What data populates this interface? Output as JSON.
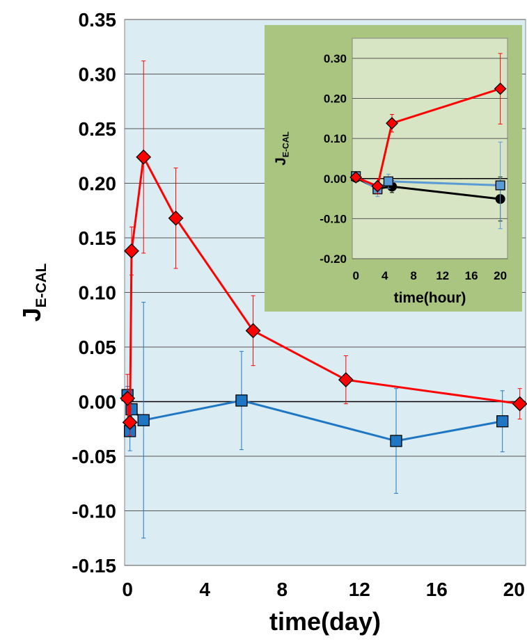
{
  "chart_data": [
    {
      "type": "line",
      "xlabel": "time(day)",
      "ylabel": "J",
      "ylabel_sub": "E-CAL",
      "xlim": [
        -0.15,
        20.6
      ],
      "ylim": [
        -0.15,
        0.35
      ],
      "x_ticks": [
        "0",
        "4",
        "8",
        "12",
        "16",
        "20"
      ],
      "y_ticks": [
        "-0.15",
        "-0.10",
        "-0.05",
        "0.00",
        "0.05",
        "0.10",
        "0.15",
        "0.20",
        "0.25",
        "0.30",
        "0.35"
      ],
      "grid": true,
      "legend": "none",
      "colors": {
        "plot_bg": "#dbecf3",
        "red_series": "#ff0000",
        "blue_series": "#1f77c4",
        "blue_marker": "#1f6fb8"
      },
      "series": [
        {
          "marker": "diamond",
          "color": "#ff0000",
          "x": [
            0.0,
            0.125,
            0.21,
            0.83,
            2.5,
            6.5,
            11.3,
            20.3
          ],
          "y": [
            0.003,
            -0.019,
            0.138,
            0.224,
            0.168,
            0.065,
            0.02,
            -0.002
          ],
          "err": [
            0.022,
            0.012,
            0.022,
            0.088,
            0.046,
            0.032,
            0.022,
            0.014
          ]
        },
        {
          "marker": "square",
          "color": "#1f77c4",
          "x": [
            0.0,
            0.125,
            0.21,
            0.83,
            5.9,
            13.9,
            19.4
          ],
          "y": [
            0.006,
            -0.027,
            -0.007,
            -0.017,
            0.001,
            -0.036,
            -0.018
          ],
          "err": [
            0.008,
            0.018,
            0.01,
            0.108,
            0.045,
            0.048,
            0.028
          ]
        }
      ]
    },
    {
      "type": "line",
      "xlabel": "time(hour)",
      "ylabel": "J",
      "ylabel_sub": "E-CAL",
      "xlim": [
        -0.5,
        21
      ],
      "ylim": [
        -0.2,
        0.35
      ],
      "x_ticks": [
        "0",
        "4",
        "8",
        "12",
        "16",
        "20"
      ],
      "y_ticks": [
        "-0.20",
        "-0.10",
        "0.00",
        "0.10",
        "0.20",
        "0.30"
      ],
      "grid": true,
      "legend": "none",
      "colors": {
        "panel_bg": "#a9c580",
        "plot_bg": "#d8e5c5",
        "red_series": "#ff0000",
        "blue_series": "#5b9bd5",
        "black_series": "#000000"
      },
      "series": [
        {
          "marker": "diamond",
          "color": "#ff0000",
          "x": [
            0,
            3,
            5,
            20
          ],
          "y": [
            0.003,
            -0.019,
            0.138,
            0.224
          ],
          "err": [
            0.01,
            0.018,
            0.022,
            0.088
          ]
        },
        {
          "marker": "square",
          "color": "#5b9bd5",
          "x": [
            0,
            3,
            4.5,
            20
          ],
          "y": [
            0.006,
            -0.027,
            -0.007,
            -0.017
          ],
          "err": [
            0.01,
            0.018,
            0.018,
            0.108
          ]
        },
        {
          "marker": "circle",
          "color": "#000000",
          "x": [
            0,
            3,
            5,
            20
          ],
          "y": [
            0.002,
            -0.025,
            -0.02,
            -0.051
          ],
          "err": [
            0.008,
            0.012,
            0.015,
            0.055
          ]
        }
      ]
    }
  ]
}
